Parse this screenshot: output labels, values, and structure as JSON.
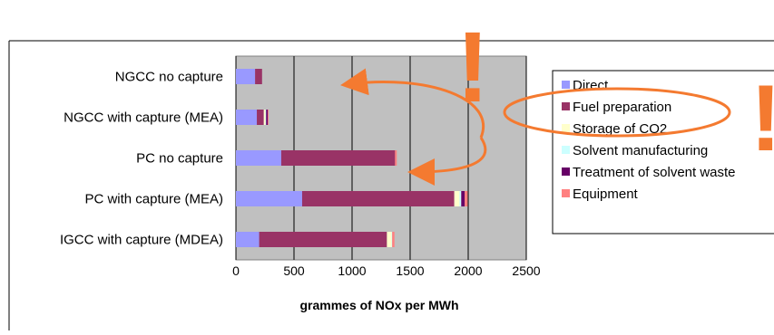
{
  "colors": {
    "plot_bg": "#C0C0C0",
    "grid": "#000000",
    "annotation": "#F47A30",
    "text": "#000000",
    "frame": "#000000"
  },
  "chart_data": {
    "type": "bar",
    "orientation": "horizontal",
    "stacked": true,
    "categories": [
      "NGCC no capture",
      "NGCC with capture (MEA)",
      "PC no capture",
      "PC with capture (MEA)",
      "IGCC with capture (MDEA)"
    ],
    "series": [
      {
        "name": "Direct",
        "color": "#9999FF",
        "values": [
          165,
          180,
          390,
          570,
          200
        ]
      },
      {
        "name": "Fuel preparation",
        "color": "#993366",
        "values": [
          60,
          60,
          980,
          1310,
          1100
        ]
      },
      {
        "name": "Storage of CO2",
        "color": "#FFFFCC",
        "values": [
          0,
          15,
          0,
          45,
          40
        ]
      },
      {
        "name": "Solvent manufacturing",
        "color": "#CCFFFF",
        "values": [
          0,
          5,
          0,
          15,
          5
        ]
      },
      {
        "name": "Treatment of solvent waste",
        "color": "#660066",
        "values": [
          0,
          15,
          0,
          30,
          0
        ]
      },
      {
        "name": "Equipment",
        "color": "#FF8080",
        "values": [
          0,
          5,
          15,
          25,
          20
        ]
      }
    ],
    "xlabel": "grammes of NOx per MWh",
    "ylabel": "",
    "xlim": [
      0,
      2500
    ],
    "x_ticks": [
      "0",
      "500",
      "1000",
      "1500",
      "2000",
      "2500"
    ],
    "grid": true,
    "legend_position": "right"
  },
  "annotations": {
    "exclamation_left": "!",
    "exclamation_right": "!"
  }
}
